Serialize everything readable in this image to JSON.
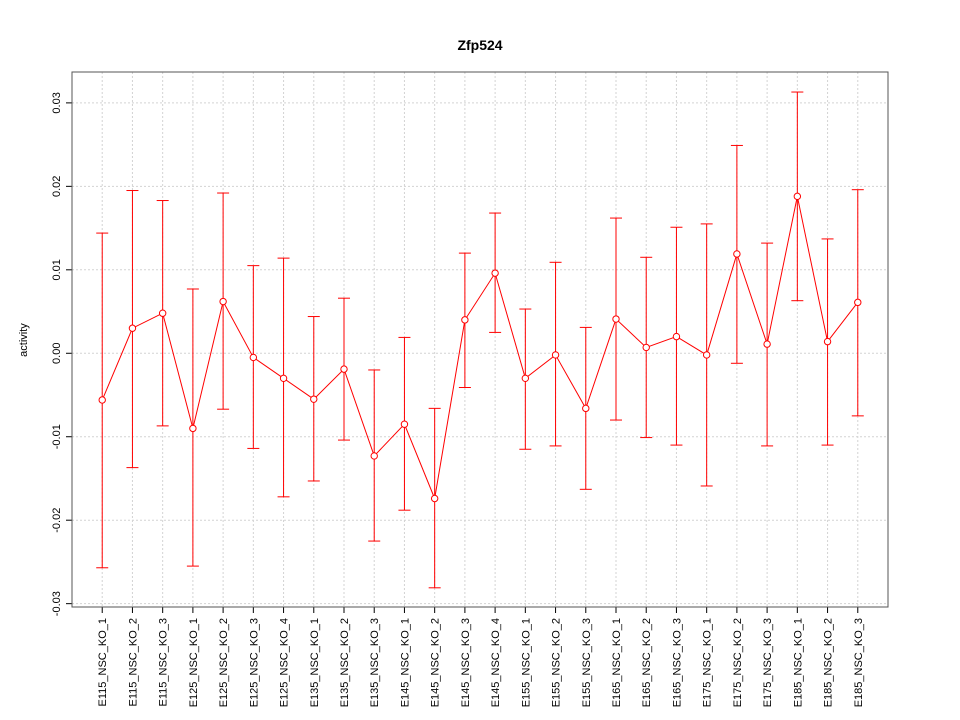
{
  "chart_data": {
    "type": "line",
    "title": "Zfp524",
    "xlabel": "",
    "ylabel": "activity",
    "ylim": [
      -0.0304,
      0.0337
    ],
    "xlim": [
      0,
      27
    ],
    "yticks": [
      -0.03,
      -0.02,
      -0.01,
      0.0,
      0.01,
      0.02,
      0.03
    ],
    "ytick_labels": [
      "-0.03",
      "-0.02",
      "-0.01",
      "0.00",
      "0.01",
      "0.02",
      "0.03"
    ],
    "grid": true,
    "color": "#ff0000",
    "categories": [
      "E115_NSC_KO_1",
      "E115_NSC_KO_2",
      "E115_NSC_KO_3",
      "E125_NSC_KO_1",
      "E125_NSC_KO_2",
      "E125_NSC_KO_3",
      "E125_NSC_KO_4",
      "E135_NSC_KO_1",
      "E135_NSC_KO_2",
      "E135_NSC_KO_3",
      "E145_NSC_KO_1",
      "E145_NSC_KO_2",
      "E145_NSC_KO_3",
      "E145_NSC_KO_4",
      "E155_NSC_KO_1",
      "E155_NSC_KO_2",
      "E155_NSC_KO_3",
      "E165_NSC_KO_1",
      "E165_NSC_KO_2",
      "E165_NSC_KO_3",
      "E175_NSC_KO_1",
      "E175_NSC_KO_2",
      "E175_NSC_KO_3",
      "E185_NSC_KO_1",
      "E185_NSC_KO_2",
      "E185_NSC_KO_3"
    ],
    "values": [
      -0.0056,
      0.003,
      0.0048,
      -0.009,
      0.0062,
      -0.0005,
      -0.003,
      -0.0055,
      -0.0019,
      -0.0123,
      -0.0085,
      -0.0174,
      0.004,
      0.0096,
      -0.003,
      -0.0002,
      -0.0066,
      0.0041,
      0.0007,
      0.002,
      -0.0002,
      0.0119,
      0.0011,
      0.0188,
      0.0014,
      0.0061
    ],
    "upper": [
      0.0144,
      0.0195,
      0.0183,
      0.0077,
      0.0192,
      0.0105,
      0.0114,
      0.0044,
      0.0066,
      -0.002,
      0.0019,
      -0.0066,
      0.012,
      0.0168,
      0.0053,
      0.0109,
      0.0031,
      0.0162,
      0.0115,
      0.0151,
      0.0155,
      0.0249,
      0.0132,
      0.0313,
      0.0137,
      0.0196
    ],
    "lower": [
      -0.0257,
      -0.0137,
      -0.0087,
      -0.0255,
      -0.0067,
      -0.0114,
      -0.0172,
      -0.0153,
      -0.0104,
      -0.0225,
      -0.0188,
      -0.0281,
      -0.0041,
      0.0025,
      -0.0115,
      -0.0111,
      -0.0163,
      -0.008,
      -0.0101,
      -0.011,
      -0.0159,
      -0.0012,
      -0.0111,
      0.0063,
      -0.011,
      -0.0075
    ]
  }
}
